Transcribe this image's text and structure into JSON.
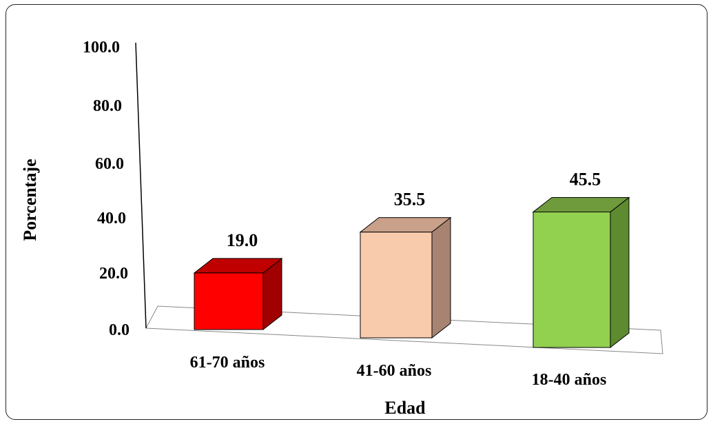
{
  "chart_data": {
    "type": "bar",
    "xlabel": "Edad",
    "ylabel": "Porcentaje",
    "categories": [
      "61-70 años",
      "41-60 años",
      "18-40 años"
    ],
    "values": [
      19.0,
      35.5,
      45.5
    ],
    "value_labels": [
      "19.0",
      "35.5",
      "45.5"
    ],
    "yticks": [
      "0.0",
      "20.0",
      "40.0",
      "60.0",
      "80.0",
      "100.0"
    ],
    "ylim": [
      0,
      100
    ],
    "grid": false,
    "colors": [
      {
        "front": "#ff0000",
        "top": "#c00000",
        "side": "#a00000"
      },
      {
        "front": "#f8cbad",
        "top": "#c9a08a",
        "side": "#a98371"
      },
      {
        "front": "#92d050",
        "top": "#6f9b3c",
        "side": "#5e8a30"
      }
    ]
  }
}
